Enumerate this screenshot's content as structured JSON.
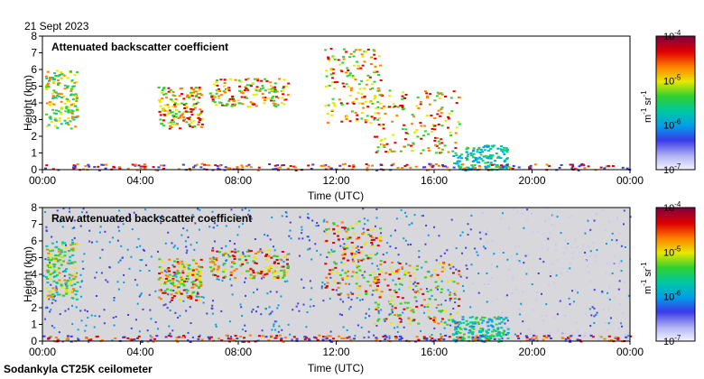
{
  "date": "21 Sept 2023",
  "footer": "Sodankyla CT25K ceilometer",
  "chart_data": [
    {
      "type": "heatmap",
      "title": "Attenuated backscatter coefficient",
      "xlabel": "Time (UTC)",
      "ylabel": "Height (km)",
      "x_ticks": [
        "00:00",
        "04:00",
        "08:00",
        "12:00",
        "16:00",
        "20:00",
        "00:00"
      ],
      "x_range_hours": [
        0,
        24
      ],
      "y_ticks": [
        0,
        1,
        2,
        3,
        4,
        5,
        6,
        7,
        8
      ],
      "ylim": [
        0,
        8
      ],
      "colorbar": {
        "label_base": "m",
        "label_exp1": "-1",
        "label_unit2": " sr",
        "label_exp2": "-1",
        "scale": "log",
        "ticks": [
          {
            "base": "10",
            "exp": "-4"
          },
          {
            "base": "10",
            "exp": "-5"
          },
          {
            "base": "10",
            "exp": "-6"
          },
          {
            "base": "10",
            "exp": "-7"
          }
        ]
      },
      "features": [
        {
          "hours": [
            0.1,
            1.4
          ],
          "km": [
            2.5,
            6.0
          ],
          "level": "medium-high"
        },
        {
          "hours": [
            4.7,
            6.5
          ],
          "km": [
            2.5,
            5.0
          ],
          "level": "high"
        },
        {
          "hours": [
            6.8,
            10.0
          ],
          "km": [
            3.8,
            5.5
          ],
          "level": "high"
        },
        {
          "hours": [
            11.5,
            13.8
          ],
          "km": [
            2.8,
            7.3
          ],
          "level": "high"
        },
        {
          "hours": [
            13.5,
            17.0
          ],
          "km": [
            1.0,
            4.8
          ],
          "level": "high"
        },
        {
          "hours": [
            16.7,
            19.0
          ],
          "km": [
            0.0,
            1.5
          ],
          "level": "medium"
        },
        {
          "hours": [
            0.0,
            24.0
          ],
          "km": [
            0.0,
            0.4
          ],
          "level": "boundary-layer"
        }
      ]
    },
    {
      "type": "heatmap",
      "title": "Raw attenuated backscatter coefficient",
      "xlabel": "Time (UTC)",
      "ylabel": "Height (km)",
      "x_ticks": [
        "00:00",
        "04:00",
        "08:00",
        "12:00",
        "16:00",
        "20:00",
        "00:00"
      ],
      "x_range_hours": [
        0,
        24
      ],
      "y_ticks": [
        0,
        1,
        2,
        3,
        4,
        5,
        6,
        7,
        8
      ],
      "ylim": [
        0,
        8
      ],
      "colorbar": {
        "label_base": "m",
        "label_exp1": "-1",
        "label_unit2": " sr",
        "label_exp2": "-1",
        "scale": "log",
        "ticks": [
          {
            "base": "10",
            "exp": "-4"
          },
          {
            "base": "10",
            "exp": "-5"
          },
          {
            "base": "10",
            "exp": "-6"
          },
          {
            "base": "10",
            "exp": "-7"
          }
        ]
      }
    }
  ]
}
